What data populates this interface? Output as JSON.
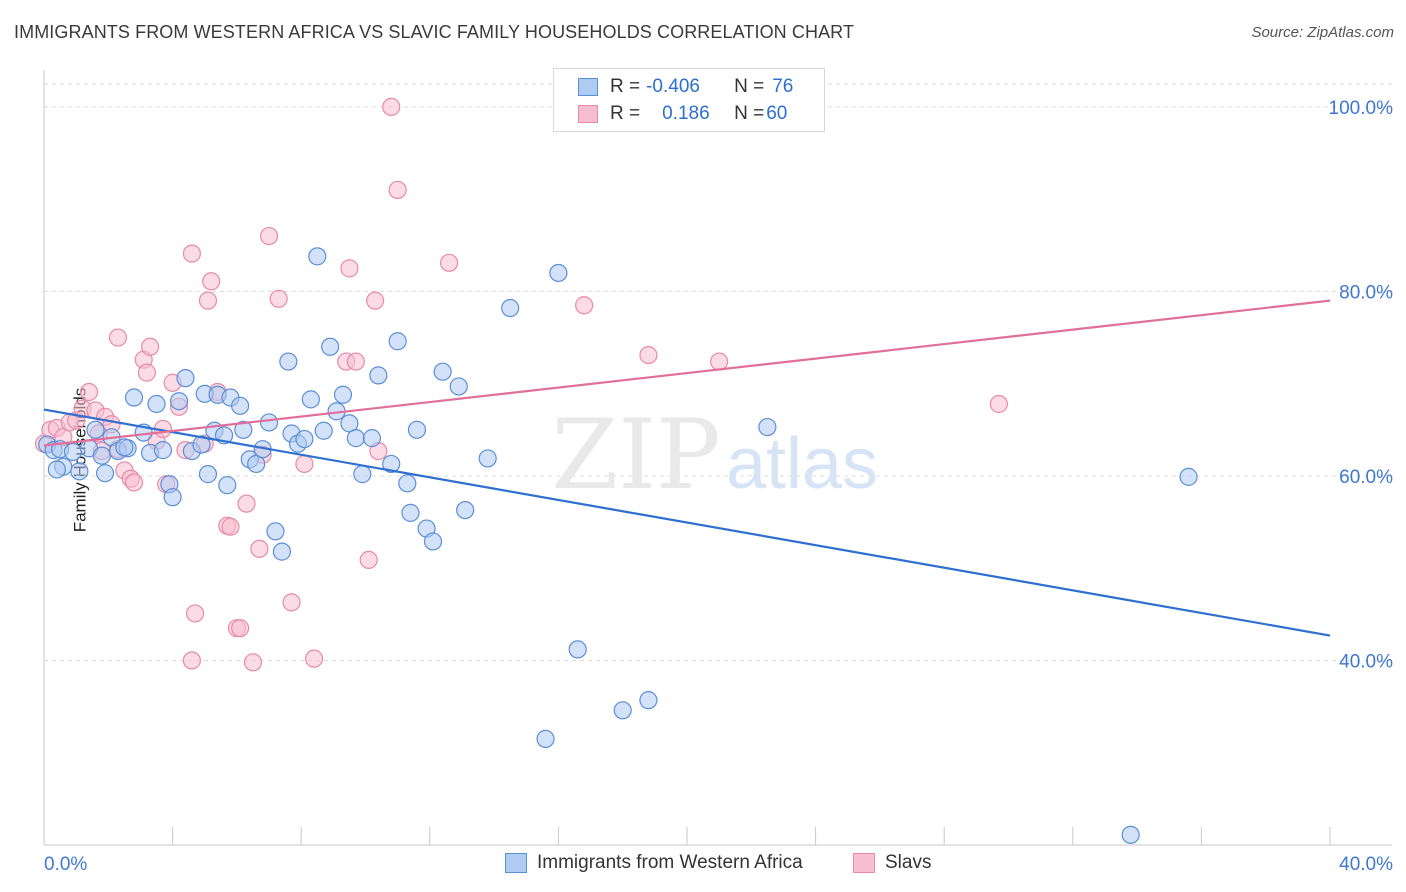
{
  "title": "IMMIGRANTS FROM WESTERN AFRICA VS SLAVIC FAMILY HOUSEHOLDS CORRELATION CHART",
  "source": "Source: ZipAtlas.com",
  "watermark": {
    "zip": "ZIP",
    "atlas": "atlas"
  },
  "legend": {
    "rows": [
      {
        "r_label": "R = ",
        "r_value": "-0.406",
        "n_label": "N = ",
        "n_value": "76"
      },
      {
        "r_label": "R = ",
        "r_value": "0.186",
        "n_label": "N = ",
        "n_value": "60"
      }
    ]
  },
  "bottom_legend": [
    "Immigrants from Western Africa",
    "Slavs"
  ],
  "colors": {
    "blue_fill": "#aecbf2",
    "blue_stroke": "#5b8fd6",
    "blue_line": "#2f6fd0",
    "pink_fill": "#f7bdd0",
    "pink_stroke": "#e88aab",
    "pink_line": "#e0709a",
    "tick_text": "#3f78d1",
    "grid": "#dcdcdc"
  },
  "chart_data": {
    "type": "scatter",
    "title": "IMMIGRANTS FROM WESTERN AFRICA VS SLAVIC FAMILY HOUSEHOLDS CORRELATION CHART",
    "xlabel": "",
    "ylabel": "Family Households",
    "xlim": [
      0,
      40
    ],
    "ylim": [
      20,
      104
    ],
    "x_tick_labels": [
      "0.0%",
      "40.0%"
    ],
    "y_ticks": [
      40,
      60,
      80,
      100
    ],
    "y_tick_labels": [
      "40.0%",
      "60.0%",
      "80.0%",
      "100.0%"
    ],
    "grid": true,
    "series": [
      {
        "name": "Immigrants from Western Africa",
        "r": -0.406,
        "n": 76,
        "trend": {
          "x": [
            0,
            40
          ],
          "y": [
            67.2,
            42.7
          ]
        },
        "points": [
          [
            0.1,
            63.4
          ],
          [
            0.3,
            62.8
          ],
          [
            0.5,
            62.9
          ],
          [
            0.6,
            61.0
          ],
          [
            0.9,
            62.6
          ],
          [
            1.1,
            60.5
          ],
          [
            1.4,
            63.0
          ],
          [
            1.6,
            65.0
          ],
          [
            1.8,
            62.2
          ],
          [
            1.9,
            60.3
          ],
          [
            2.1,
            64.2
          ],
          [
            2.3,
            62.7
          ],
          [
            2.6,
            63.0
          ],
          [
            2.8,
            68.5
          ],
          [
            3.1,
            64.7
          ],
          [
            3.3,
            62.5
          ],
          [
            3.5,
            67.8
          ],
          [
            3.7,
            62.8
          ],
          [
            3.9,
            59.1
          ],
          [
            4.0,
            57.7
          ],
          [
            4.2,
            68.1
          ],
          [
            4.4,
            70.6
          ],
          [
            4.6,
            62.7
          ],
          [
            4.9,
            63.4
          ],
          [
            5.0,
            68.9
          ],
          [
            5.1,
            60.2
          ],
          [
            5.3,
            64.9
          ],
          [
            5.4,
            68.8
          ],
          [
            5.7,
            59.0
          ],
          [
            5.8,
            68.5
          ],
          [
            6.1,
            67.6
          ],
          [
            6.2,
            65.0
          ],
          [
            6.4,
            61.8
          ],
          [
            6.6,
            61.3
          ],
          [
            6.8,
            62.9
          ],
          [
            7.0,
            65.8
          ],
          [
            7.2,
            54.0
          ],
          [
            7.4,
            51.8
          ],
          [
            7.6,
            72.4
          ],
          [
            7.7,
            64.6
          ],
          [
            7.9,
            63.5
          ],
          [
            8.1,
            64.0
          ],
          [
            8.3,
            68.3
          ],
          [
            8.5,
            83.8
          ],
          [
            8.7,
            64.9
          ],
          [
            8.9,
            74.0
          ],
          [
            9.1,
            67.0
          ],
          [
            9.3,
            68.8
          ],
          [
            9.5,
            65.7
          ],
          [
            9.7,
            64.1
          ],
          [
            9.9,
            60.2
          ],
          [
            10.2,
            64.1
          ],
          [
            10.4,
            70.9
          ],
          [
            10.8,
            61.3
          ],
          [
            11.0,
            74.6
          ],
          [
            11.3,
            59.2
          ],
          [
            11.4,
            56.0
          ],
          [
            11.6,
            65.0
          ],
          [
            11.9,
            54.3
          ],
          [
            12.1,
            52.9
          ],
          [
            12.4,
            71.3
          ],
          [
            12.9,
            69.7
          ],
          [
            13.1,
            56.3
          ],
          [
            13.8,
            61.9
          ],
          [
            14.5,
            78.2
          ],
          [
            15.6,
            31.5
          ],
          [
            16.0,
            82.0
          ],
          [
            16.6,
            41.2
          ],
          [
            18.0,
            34.6
          ],
          [
            18.8,
            35.7
          ],
          [
            22.5,
            65.3
          ],
          [
            35.6,
            59.9
          ],
          [
            33.8,
            21.1
          ],
          [
            0.4,
            60.7
          ],
          [
            2.5,
            63.1
          ],
          [
            5.6,
            64.4
          ]
        ]
      },
      {
        "name": "Slavs",
        "r": 0.186,
        "n": 60,
        "trend": {
          "x": [
            0,
            40
          ],
          "y": [
            63.3,
            79.0
          ]
        },
        "points": [
          [
            0.0,
            63.5
          ],
          [
            0.2,
            65.0
          ],
          [
            0.4,
            65.2
          ],
          [
            0.6,
            64.2
          ],
          [
            0.8,
            65.8
          ],
          [
            1.0,
            66.0
          ],
          [
            1.2,
            67.3
          ],
          [
            1.4,
            69.1
          ],
          [
            1.6,
            67.1
          ],
          [
            1.7,
            64.6
          ],
          [
            1.9,
            66.4
          ],
          [
            2.1,
            65.6
          ],
          [
            2.3,
            62.9
          ],
          [
            2.3,
            75.0
          ],
          [
            2.5,
            60.6
          ],
          [
            2.7,
            59.7
          ],
          [
            2.8,
            59.3
          ],
          [
            3.1,
            72.6
          ],
          [
            3.2,
            71.2
          ],
          [
            3.3,
            74.0
          ],
          [
            3.5,
            63.8
          ],
          [
            3.7,
            65.1
          ],
          [
            3.8,
            59.1
          ],
          [
            4.0,
            70.1
          ],
          [
            4.2,
            67.5
          ],
          [
            4.4,
            62.8
          ],
          [
            4.6,
            84.1
          ],
          [
            4.7,
            45.1
          ],
          [
            4.6,
            40.0
          ],
          [
            5.0,
            63.5
          ],
          [
            5.1,
            79.0
          ],
          [
            5.2,
            81.1
          ],
          [
            5.4,
            69.1
          ],
          [
            5.7,
            54.6
          ],
          [
            5.8,
            54.5
          ],
          [
            6.0,
            43.5
          ],
          [
            6.1,
            43.5
          ],
          [
            6.3,
            57.0
          ],
          [
            6.5,
            39.8
          ],
          [
            6.7,
            52.1
          ],
          [
            6.8,
            62.3
          ],
          [
            7.0,
            86.0
          ],
          [
            7.3,
            79.2
          ],
          [
            7.7,
            46.3
          ],
          [
            8.1,
            61.3
          ],
          [
            8.4,
            40.2
          ],
          [
            9.4,
            72.4
          ],
          [
            9.5,
            82.5
          ],
          [
            9.7,
            72.4
          ],
          [
            10.1,
            50.9
          ],
          [
            10.3,
            79.0
          ],
          [
            10.4,
            62.7
          ],
          [
            10.8,
            100.0
          ],
          [
            11.0,
            91.0
          ],
          [
            12.6,
            83.1
          ],
          [
            16.8,
            78.5
          ],
          [
            18.8,
            73.1
          ],
          [
            21.0,
            72.4
          ],
          [
            29.7,
            67.8
          ],
          [
            1.8,
            62.7
          ]
        ]
      }
    ]
  }
}
